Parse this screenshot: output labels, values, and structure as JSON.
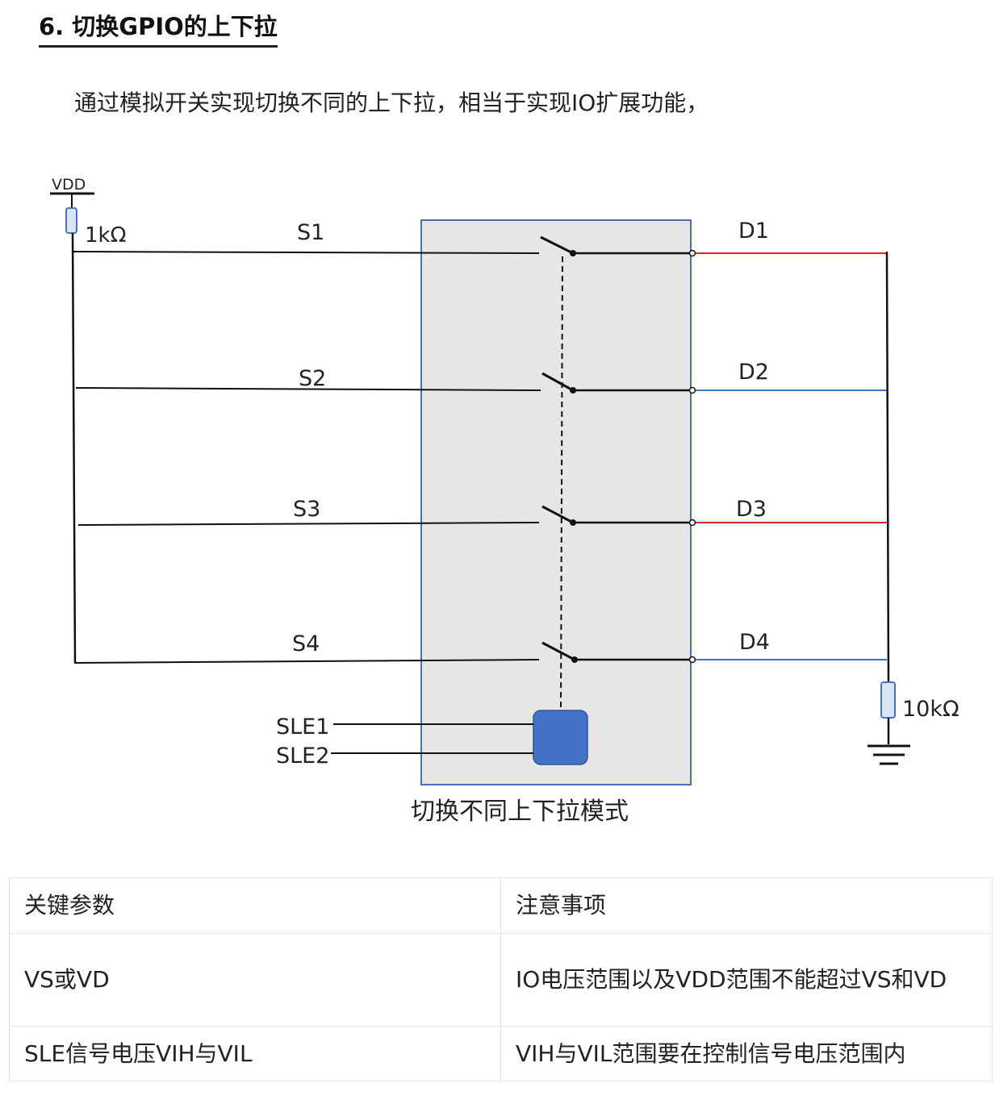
{
  "section": {
    "heading": "6. 切换GPIO的上下拉",
    "intro": "通过模拟开关实现切换不同的上下拉，相当于实现IO扩展功能，"
  },
  "diagram": {
    "vdd_label": "VDD",
    "pullup_resistor": "1kΩ",
    "pulldown_resistor": "10kΩ",
    "source_labels": [
      "S1",
      "S2",
      "S3",
      "S4"
    ],
    "drain_labels": [
      "D1",
      "D2",
      "D3",
      "D4"
    ],
    "select_labels": [
      "SLE1",
      "SLE2"
    ],
    "caption": "切换不同上下拉模式",
    "colors": {
      "box_fill": "#e6e6e6",
      "box_border": "#4a6fb5",
      "select_block": "#4472c4",
      "red_line": "#e8202a",
      "blue_line": "#4472c4"
    }
  },
  "table": {
    "headers": [
      "关键参数",
      "注意事项"
    ],
    "rows": [
      [
        "VS或VD",
        "IO电压范围以及VDD范围不能超过VS和VD"
      ],
      [
        "SLE信号电压VIH与VIL",
        "VIH与VIL范围要在控制信号电压范围内"
      ]
    ]
  }
}
